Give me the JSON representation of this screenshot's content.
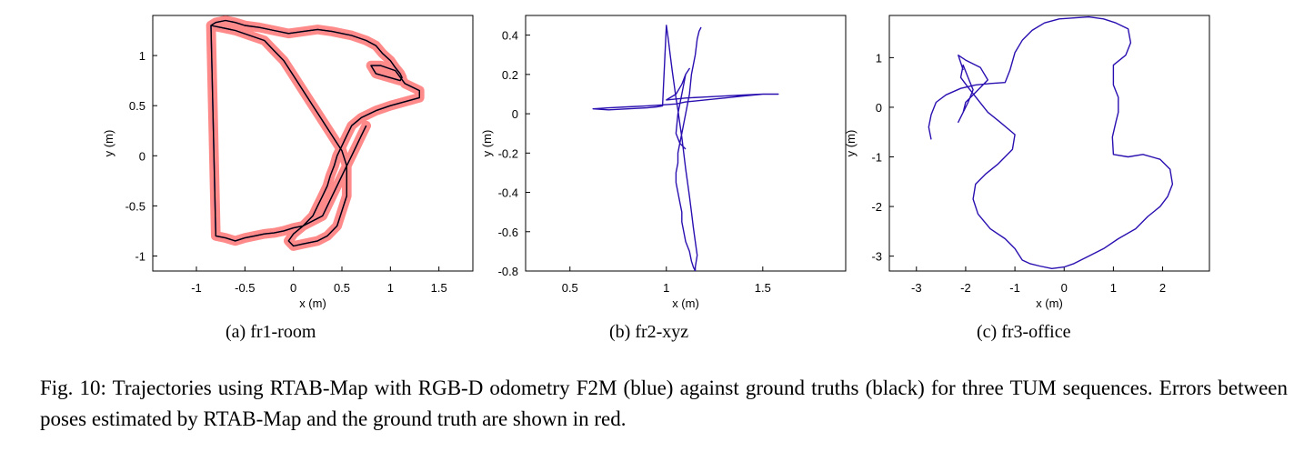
{
  "chart_data": [
    {
      "type": "line",
      "caption": "(a) fr1-room",
      "xlabel": "x (m)",
      "ylabel": "y (m)",
      "xlim": [
        -1.45,
        1.85
      ],
      "ylim": [
        -1.15,
        1.4
      ],
      "xticks": [
        -1,
        -0.5,
        0,
        0.5,
        1,
        1.5
      ],
      "xticklabels": [
        "-1",
        "-0.5",
        "0",
        "0.5",
        "1",
        "1.5"
      ],
      "yticks": [
        -1,
        -0.5,
        0,
        0.5,
        1
      ],
      "yticklabels": [
        "-1",
        "-0.5",
        "0",
        "0.5",
        "1"
      ],
      "error_width": 0.05,
      "series": [
        {
          "color": "#1a1aff",
          "x": [
            -0.85,
            -0.8,
            -0.7,
            -0.6,
            -0.5,
            -0.35,
            -0.2,
            -0.05,
            0.1,
            0.25,
            0.4,
            0.6,
            0.75,
            0.85,
            0.92,
            1.0,
            1.05,
            1.1,
            1.12,
            1.1,
            0.85,
            0.8,
            0.9,
            1.05,
            1.15,
            1.3,
            1.3,
            1.0,
            0.85,
            0.7,
            0.6,
            0.55,
            0.5,
            0.45,
            0.42,
            0.38,
            0.35,
            0.3,
            0.25,
            0.2,
            0.1,
            0.0,
            -0.05,
            0.0,
            0.1,
            0.25,
            0.35,
            0.45,
            0.5,
            0.55,
            0.55,
            0.55,
            0.5,
            0.4,
            0.3,
            0.2,
            0.1,
            0.0,
            -0.1,
            -0.2,
            -0.3,
            -0.45,
            -0.6,
            -0.75,
            -0.85,
            -0.8,
            -0.7,
            -0.6,
            -0.5,
            -0.4,
            -0.3,
            -0.2,
            -0.1,
            0.0,
            0.1,
            0.2,
            0.3,
            0.35,
            0.4,
            0.45,
            0.5,
            0.55,
            0.6,
            0.65,
            0.7,
            0.75
          ],
          "y": [
            1.3,
            1.33,
            1.35,
            1.33,
            1.3,
            1.28,
            1.25,
            1.22,
            1.24,
            1.26,
            1.24,
            1.2,
            1.15,
            1.1,
            1.02,
            0.95,
            0.88,
            0.82,
            0.78,
            0.75,
            0.82,
            0.9,
            0.9,
            0.85,
            0.72,
            0.65,
            0.58,
            0.5,
            0.45,
            0.38,
            0.3,
            0.2,
            0.1,
            0.0,
            -0.1,
            -0.2,
            -0.3,
            -0.4,
            -0.5,
            -0.6,
            -0.7,
            -0.78,
            -0.85,
            -0.9,
            -0.88,
            -0.85,
            -0.8,
            -0.7,
            -0.55,
            -0.4,
            -0.25,
            -0.1,
            0.05,
            0.2,
            0.35,
            0.5,
            0.65,
            0.8,
            0.95,
            1.05,
            1.15,
            1.2,
            1.25,
            1.28,
            1.3,
            -0.8,
            -0.82,
            -0.85,
            -0.82,
            -0.8,
            -0.78,
            -0.77,
            -0.75,
            -0.72,
            -0.7,
            -0.65,
            -0.6,
            -0.5,
            -0.4,
            -0.3,
            -0.2,
            -0.1,
            0.0,
            0.1,
            0.2,
            0.3
          ]
        },
        {
          "color": "#000000",
          "x": [
            -0.85,
            -0.8,
            -0.7,
            -0.6,
            -0.5,
            -0.35,
            -0.2,
            -0.05,
            0.1,
            0.25,
            0.4,
            0.6,
            0.75,
            0.85,
            0.92,
            1.0,
            1.05,
            1.1,
            1.12,
            1.1,
            0.85,
            0.8,
            0.9,
            1.05,
            1.15,
            1.3,
            1.3,
            1.0,
            0.85,
            0.7,
            0.6,
            0.55,
            0.5,
            0.45,
            0.42,
            0.38,
            0.35,
            0.3,
            0.25,
            0.2,
            0.1,
            0.0,
            -0.05,
            0.0,
            0.1,
            0.25,
            0.35,
            0.45,
            0.5,
            0.55,
            0.55,
            0.55,
            0.5,
            0.4,
            0.3,
            0.2,
            0.1,
            0.0,
            -0.1,
            -0.2,
            -0.3,
            -0.45,
            -0.6,
            -0.75,
            -0.85,
            -0.8,
            -0.7,
            -0.6,
            -0.5,
            -0.4,
            -0.3,
            -0.2,
            -0.1,
            0.0,
            0.1,
            0.2,
            0.3,
            0.35,
            0.4,
            0.45,
            0.5,
            0.55,
            0.6,
            0.65,
            0.7,
            0.75
          ],
          "y": [
            1.3,
            1.33,
            1.35,
            1.33,
            1.3,
            1.28,
            1.25,
            1.22,
            1.24,
            1.26,
            1.24,
            1.2,
            1.15,
            1.1,
            1.02,
            0.95,
            0.88,
            0.82,
            0.78,
            0.75,
            0.82,
            0.9,
            0.9,
            0.85,
            0.72,
            0.65,
            0.58,
            0.5,
            0.45,
            0.38,
            0.3,
            0.2,
            0.1,
            0.0,
            -0.1,
            -0.2,
            -0.3,
            -0.4,
            -0.5,
            -0.6,
            -0.7,
            -0.78,
            -0.85,
            -0.9,
            -0.88,
            -0.85,
            -0.8,
            -0.7,
            -0.55,
            -0.4,
            -0.25,
            -0.1,
            0.05,
            0.2,
            0.35,
            0.5,
            0.65,
            0.8,
            0.95,
            1.05,
            1.15,
            1.2,
            1.25,
            1.28,
            1.3,
            -0.8,
            -0.82,
            -0.85,
            -0.82,
            -0.8,
            -0.78,
            -0.77,
            -0.75,
            -0.72,
            -0.7,
            -0.65,
            -0.6,
            -0.5,
            -0.4,
            -0.3,
            -0.2,
            -0.1,
            0.0,
            0.1,
            0.2,
            0.3
          ]
        }
      ]
    },
    {
      "type": "line",
      "caption": "(b) fr2-xyz",
      "xlabel": "x (m)",
      "ylabel": "y (m)",
      "xlim": [
        0.27,
        1.93
      ],
      "ylim": [
        -0.8,
        0.5
      ],
      "xticks": [
        0.5,
        1,
        1.5
      ],
      "xticklabels": [
        "0.5",
        "1",
        "1.5"
      ],
      "yticks": [
        -0.8,
        -0.6,
        -0.4,
        -0.2,
        0,
        0.2,
        0.4
      ],
      "yticklabels": [
        "-0.8",
        "-0.6",
        "-0.4",
        "-0.2",
        "0",
        "0.2",
        "0.4"
      ],
      "series": [
        {
          "color": "#2a0fb0",
          "x": [
            1.18,
            1.17,
            1.16,
            1.15,
            1.13,
            1.12,
            1.11,
            1.1,
            1.09,
            1.08,
            1.07,
            1.06,
            1.06,
            1.05,
            1.05,
            1.06,
            1.07,
            1.08,
            1.08,
            1.09,
            1.1,
            1.12,
            1.13,
            1.14,
            1.15,
            1.15,
            1.16,
            1.15,
            1.14,
            1.13,
            1.12,
            1.11,
            1.1,
            1.09,
            1.08,
            1.07,
            1.06,
            1.05,
            1.04,
            1.03,
            1.02,
            1.01,
            1.0,
            0.98,
            0.95,
            0.9,
            0.8,
            0.7,
            0.62,
            0.7,
            0.8,
            0.9,
            0.98,
            1.05,
            1.1,
            1.2,
            1.3,
            1.4,
            1.5,
            1.58,
            1.5,
            1.4,
            1.3,
            1.2,
            1.1,
            1.0,
            1.05,
            1.08,
            1.1,
            1.12,
            1.1,
            1.08,
            1.06,
            1.05,
            1.07,
            1.1
          ],
          "y": [
            0.44,
            0.42,
            0.38,
            0.3,
            0.2,
            0.1,
            0.05,
            0.0,
            -0.05,
            -0.1,
            -0.15,
            -0.2,
            -0.25,
            -0.3,
            -0.35,
            -0.4,
            -0.45,
            -0.5,
            -0.55,
            -0.6,
            -0.65,
            -0.7,
            -0.75,
            -0.78,
            -0.8,
            -0.78,
            -0.72,
            -0.65,
            -0.58,
            -0.5,
            -0.42,
            -0.35,
            -0.28,
            -0.2,
            -0.12,
            -0.05,
            0.02,
            0.08,
            0.15,
            0.22,
            0.3,
            0.38,
            0.45,
            0.04,
            0.035,
            0.03,
            0.025,
            0.02,
            0.025,
            0.03,
            0.035,
            0.04,
            0.045,
            0.05,
            0.06,
            0.07,
            0.08,
            0.09,
            0.1,
            0.1,
            0.1,
            0.095,
            0.09,
            0.085,
            0.08,
            0.07,
            0.1,
            0.15,
            0.2,
            0.23,
            0.2,
            0.1,
            0.0,
            -0.1,
            -0.15,
            -0.18
          ]
        }
      ]
    },
    {
      "type": "line",
      "caption": "(c) fr3-office",
      "xlabel": "x (m)",
      "ylabel": "y (m)",
      "xlim": [
        -3.55,
        2.95
      ],
      "ylim": [
        -3.3,
        1.85
      ],
      "xticks": [
        -3,
        -2,
        -1,
        0,
        1,
        2
      ],
      "xticklabels": [
        "-3",
        "-2",
        "-1",
        "0",
        "1",
        "2"
      ],
      "yticks": [
        -3,
        -2,
        -1,
        0,
        1
      ],
      "yticklabels": [
        "-3",
        "-2",
        "-1",
        "0",
        "1"
      ],
      "series": [
        {
          "color": "#2a0fb0",
          "x": [
            -2.7,
            -2.75,
            -2.7,
            -2.6,
            -2.4,
            -2.1,
            -1.8,
            -1.5,
            -1.2,
            -1.1,
            -1.0,
            -0.85,
            -0.65,
            -0.4,
            -0.1,
            0.2,
            0.5,
            0.8,
            1.05,
            1.3,
            1.35,
            1.25,
            1.0,
            1.0,
            1.1,
            1.1,
            1.05,
            0.98,
            1.0,
            1.3,
            1.6,
            1.95,
            2.15,
            2.2,
            2.1,
            1.95,
            1.7,
            1.45,
            1.1,
            0.8,
            0.5,
            0.2,
            0.0,
            -0.25,
            -0.5,
            -0.7,
            -0.85,
            -1.0,
            -1.2,
            -1.5,
            -1.75,
            -1.85,
            -1.8,
            -1.6,
            -1.35,
            -1.05,
            -1.0,
            -1.3,
            -1.55,
            -1.75,
            -1.95,
            -2.1,
            -2.05,
            -1.95,
            -1.85,
            -1.95,
            -2.05,
            -2.15,
            -2.05,
            -2.0,
            -1.8,
            -1.55,
            -1.7,
            -2.0,
            -2.15,
            -2.05
          ],
          "y": [
            -0.65,
            -0.4,
            -0.15,
            0.1,
            0.25,
            0.38,
            0.45,
            0.48,
            0.5,
            0.75,
            1.1,
            1.35,
            1.55,
            1.7,
            1.78,
            1.8,
            1.82,
            1.78,
            1.7,
            1.58,
            1.3,
            1.05,
            0.85,
            0.45,
            0.2,
            -0.1,
            -0.3,
            -0.6,
            -0.95,
            -1.0,
            -0.95,
            -1.05,
            -1.25,
            -1.55,
            -1.8,
            -2.0,
            -2.2,
            -2.45,
            -2.65,
            -2.85,
            -3.0,
            -3.15,
            -3.22,
            -3.25,
            -3.2,
            -3.15,
            -3.08,
            -2.85,
            -2.65,
            -2.45,
            -2.15,
            -1.85,
            -1.55,
            -1.35,
            -1.15,
            -0.85,
            -0.55,
            -0.3,
            -0.1,
            0.15,
            0.4,
            0.6,
            0.85,
            0.6,
            0.35,
            0.1,
            -0.1,
            -0.3,
            -0.1,
            0.1,
            0.3,
            0.55,
            0.8,
            0.95,
            1.05,
            0.75
          ]
        }
      ]
    }
  ],
  "figure_caption": "Fig.   10: Trajectories using RTAB-Map with RGB-D odometry F2M (blue) against ground truths (black) for three TUM sequences. Errors between poses estimated by RTAB-Map and the ground truth are shown in red."
}
